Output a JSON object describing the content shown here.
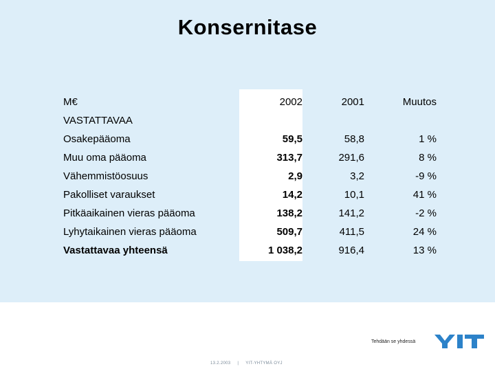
{
  "slide": {
    "title": "Konsernitase"
  },
  "table": {
    "header": {
      "label": "M€",
      "y2002": "2002",
      "y2001": "2001",
      "change": "Muutos"
    },
    "section": "VASTATTAVAA",
    "rows": [
      {
        "label": "Osakepääoma",
        "y2002": "59,5",
        "y2001": "58,8",
        "change": "1 %"
      },
      {
        "label": "Muu oma pääoma",
        "y2002": "313,7",
        "y2001": "291,6",
        "change": "8 %"
      },
      {
        "label": "Vähemmistöosuus",
        "y2002": "2,9",
        "y2001": "3,2",
        "change": "-9 %"
      },
      {
        "label": "Pakolliset varaukset",
        "y2002": "14,2",
        "y2001": "10,1",
        "change": "41 %"
      },
      {
        "label": "Pitkäaikainen vieras pääoma",
        "y2002": "138,2",
        "y2001": "141,2",
        "change": "-2 %"
      },
      {
        "label": "Lyhytaikainen vieras pääoma",
        "y2002": "509,7",
        "y2001": "411,5",
        "change": "24 %"
      },
      {
        "label": "Vastattavaa yhteensä",
        "y2002": "1 038,2",
        "y2001": "916,4",
        "change": "13 %"
      }
    ]
  },
  "branding": {
    "tagline": "Tehdään se yhdessä",
    "logo_text": "YIT",
    "logo_color": "#2c82c9"
  },
  "footer": {
    "date": "13.2.2003",
    "separator": "|",
    "company": "YIT-YHTYMÄ OYJ"
  }
}
